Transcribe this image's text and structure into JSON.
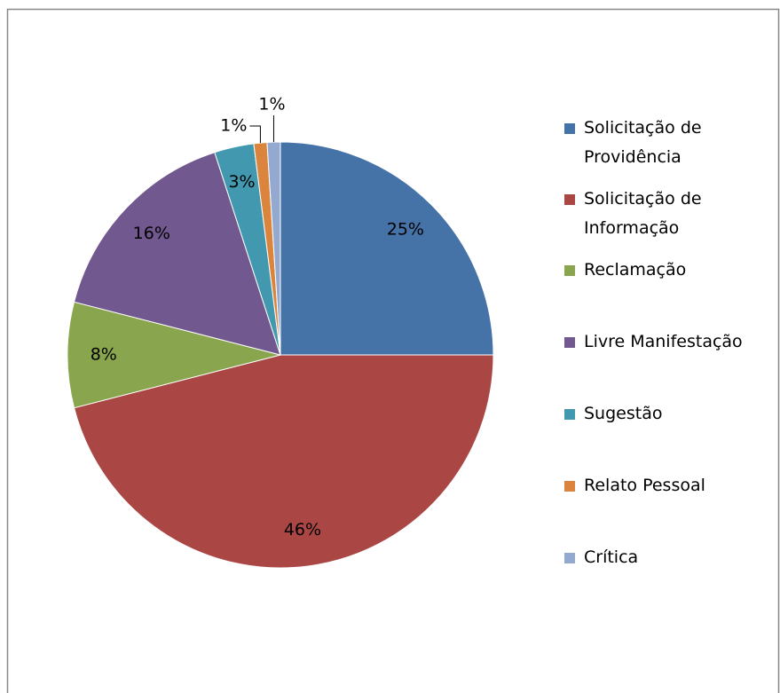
{
  "chart_data": {
    "type": "pie",
    "categories": [
      "Solicitação de Providência",
      "Solicitação de Informação",
      "Reclamação",
      "Livre Manifestação",
      "Sugestão",
      "Relato Pessoal",
      "Crítica"
    ],
    "values": [
      25,
      46,
      8,
      16,
      3,
      1,
      1
    ],
    "value_labels": [
      "25%",
      "46%",
      "8%",
      "16%",
      "3%",
      "1%",
      "1%"
    ],
    "colors": [
      "#4572a7",
      "#aa4643",
      "#89a54e",
      "#71588f",
      "#4198af",
      "#db843d",
      "#93a9cf"
    ],
    "legend": "right"
  }
}
